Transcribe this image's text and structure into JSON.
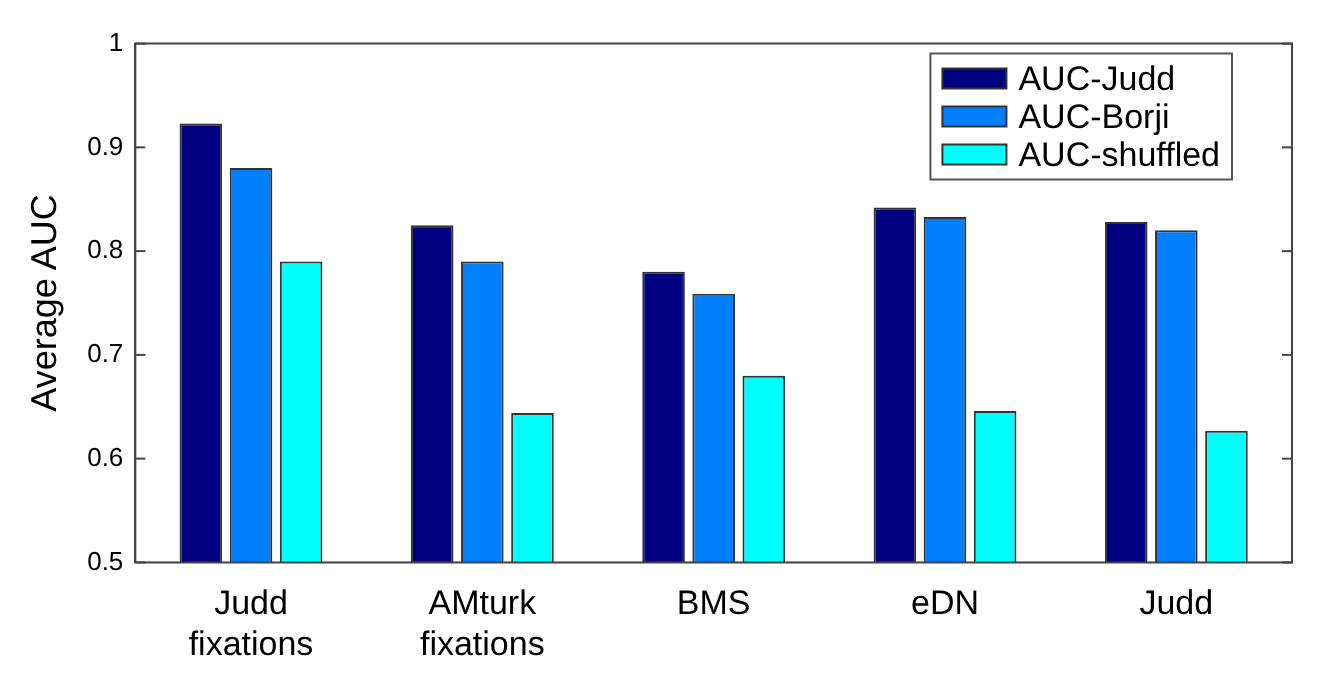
{
  "chart_data": {
    "type": "bar",
    "ylabel": "Average AUC",
    "categories": [
      "Judd fixations",
      "AMturk fixations",
      "BMS",
      "eDN",
      "Judd"
    ],
    "series": [
      {
        "name": "AUC-Judd",
        "color": "#000080",
        "values": [
          0.923,
          0.825,
          0.78,
          0.842,
          0.828
        ]
      },
      {
        "name": "AUC-Borji",
        "color": "#0080ff",
        "values": [
          0.88,
          0.79,
          0.759,
          0.833,
          0.82
        ]
      },
      {
        "name": "AUC-shuffled",
        "color": "#00ffff",
        "values": [
          0.79,
          0.644,
          0.68,
          0.646,
          0.627
        ]
      }
    ],
    "ylim": [
      0.5,
      1
    ],
    "yticks": [
      0.5,
      0.6,
      0.7,
      0.8,
      0.9,
      1
    ],
    "grid": false,
    "legend": "top right"
  }
}
